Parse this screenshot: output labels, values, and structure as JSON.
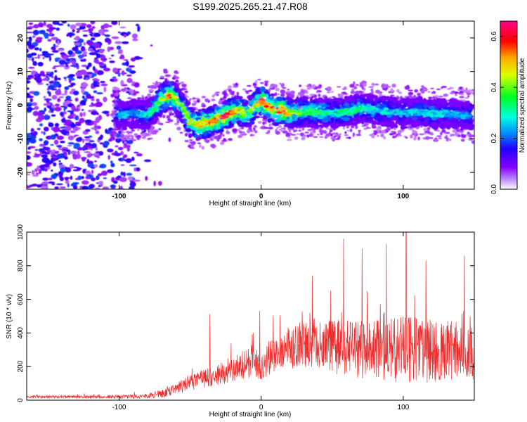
{
  "title": "S199.2025.265.21.47.R08",
  "colors": {
    "snr_line": "#ee2b2b",
    "frame": "#000000",
    "colormap": [
      "#ffffff",
      "#8800ff",
      "#2200ff",
      "#0088ff",
      "#00ffdd",
      "#00ff22",
      "#ddff00",
      "#ffaa00",
      "#ff0000",
      "#ff0088"
    ]
  },
  "chart_data": [
    {
      "type": "heatmap",
      "xlabel": "Height of straight line (km)",
      "ylabel": "Frequency (Hz)",
      "xlim": [
        -165,
        150
      ],
      "ylim": [
        -25,
        25
      ],
      "x_ticks": [
        -100,
        0,
        100
      ],
      "y_ticks": [
        -20,
        -10,
        0,
        10,
        20
      ],
      "colorbar_label": "Normalized spectral amplitude",
      "colorbar_ticks": [
        0.0,
        0.2,
        0.4,
        0.6
      ],
      "colorbar_range": [
        0,
        0.66
      ],
      "ridge": {
        "x": [
          -100,
          -90,
          -80,
          -75,
          -70,
          -65,
          -60,
          -55,
          -50,
          -45,
          -40,
          -35,
          -30,
          -25,
          -20,
          -15,
          -10,
          -5,
          0,
          5,
          10,
          15,
          20,
          30,
          40,
          50,
          60,
          70,
          80,
          90,
          100,
          110,
          120,
          130,
          140,
          147
        ],
        "y": [
          -3,
          -2.5,
          -3,
          -1,
          2,
          3,
          2,
          -1,
          -5,
          -6,
          -5.5,
          -5,
          -4,
          -3,
          -2,
          -1.5,
          -3,
          -0.5,
          1.5,
          -0.5,
          -1.5,
          -1.5,
          -2.5,
          -2,
          -2,
          -2.5,
          -2,
          -1,
          -1.5,
          -2,
          -2.5,
          -2,
          -2.5,
          -2.5,
          -3,
          -3
        ],
        "peak_amplitude": [
          0.28,
          0.22,
          0.3,
          0.35,
          0.45,
          0.55,
          0.45,
          0.4,
          0.45,
          0.5,
          0.55,
          0.58,
          0.6,
          0.62,
          0.55,
          0.5,
          0.4,
          0.45,
          0.6,
          0.58,
          0.55,
          0.62,
          0.45,
          0.35,
          0.38,
          0.3,
          0.35,
          0.32,
          0.3,
          0.28,
          0.25,
          0.28,
          0.3,
          0.26,
          0.25,
          0.22
        ]
      },
      "noise_region_end_x": -85
    },
    {
      "type": "line",
      "xlabel": "Height of straight line (km)",
      "ylabel": "SNR (10 * v/v)",
      "xlim": [
        -165,
        150
      ],
      "ylim": [
        0,
        1000
      ],
      "x_ticks": [
        -100,
        0,
        100
      ],
      "y_ticks": [
        0,
        200,
        400,
        600,
        800,
        1000
      ],
      "envelope": {
        "x": [
          -165,
          -130,
          -100,
          -80,
          -70,
          -60,
          -50,
          -40,
          -30,
          -20,
          -10,
          -5,
          0,
          10,
          20,
          30,
          40,
          50,
          60,
          80,
          100,
          120,
          140,
          150
        ],
        "mean": [
          20,
          20,
          20,
          25,
          40,
          70,
          100,
          130,
          150,
          180,
          220,
          250,
          200,
          280,
          310,
          330,
          340,
          320,
          310,
          300,
          300,
          290,
          300,
          280
        ],
        "spread": [
          8,
          8,
          10,
          15,
          25,
          35,
          45,
          55,
          60,
          70,
          90,
          110,
          80,
          110,
          130,
          140,
          150,
          160,
          170,
          180,
          200,
          190,
          170,
          160
        ]
      },
      "spikes": [
        {
          "x": -36,
          "y": 510
        },
        {
          "x": -1,
          "y": 530
        },
        {
          "x": 36,
          "y": 740
        },
        {
          "x": 49,
          "y": 650
        },
        {
          "x": 58,
          "y": 960
        },
        {
          "x": 71,
          "y": 900
        },
        {
          "x": 88,
          "y": 930
        },
        {
          "x": 102,
          "y": 1030
        },
        {
          "x": 116,
          "y": 830
        },
        {
          "x": 143,
          "y": 860
        },
        {
          "x": 147,
          "y": 500
        }
      ]
    }
  ]
}
